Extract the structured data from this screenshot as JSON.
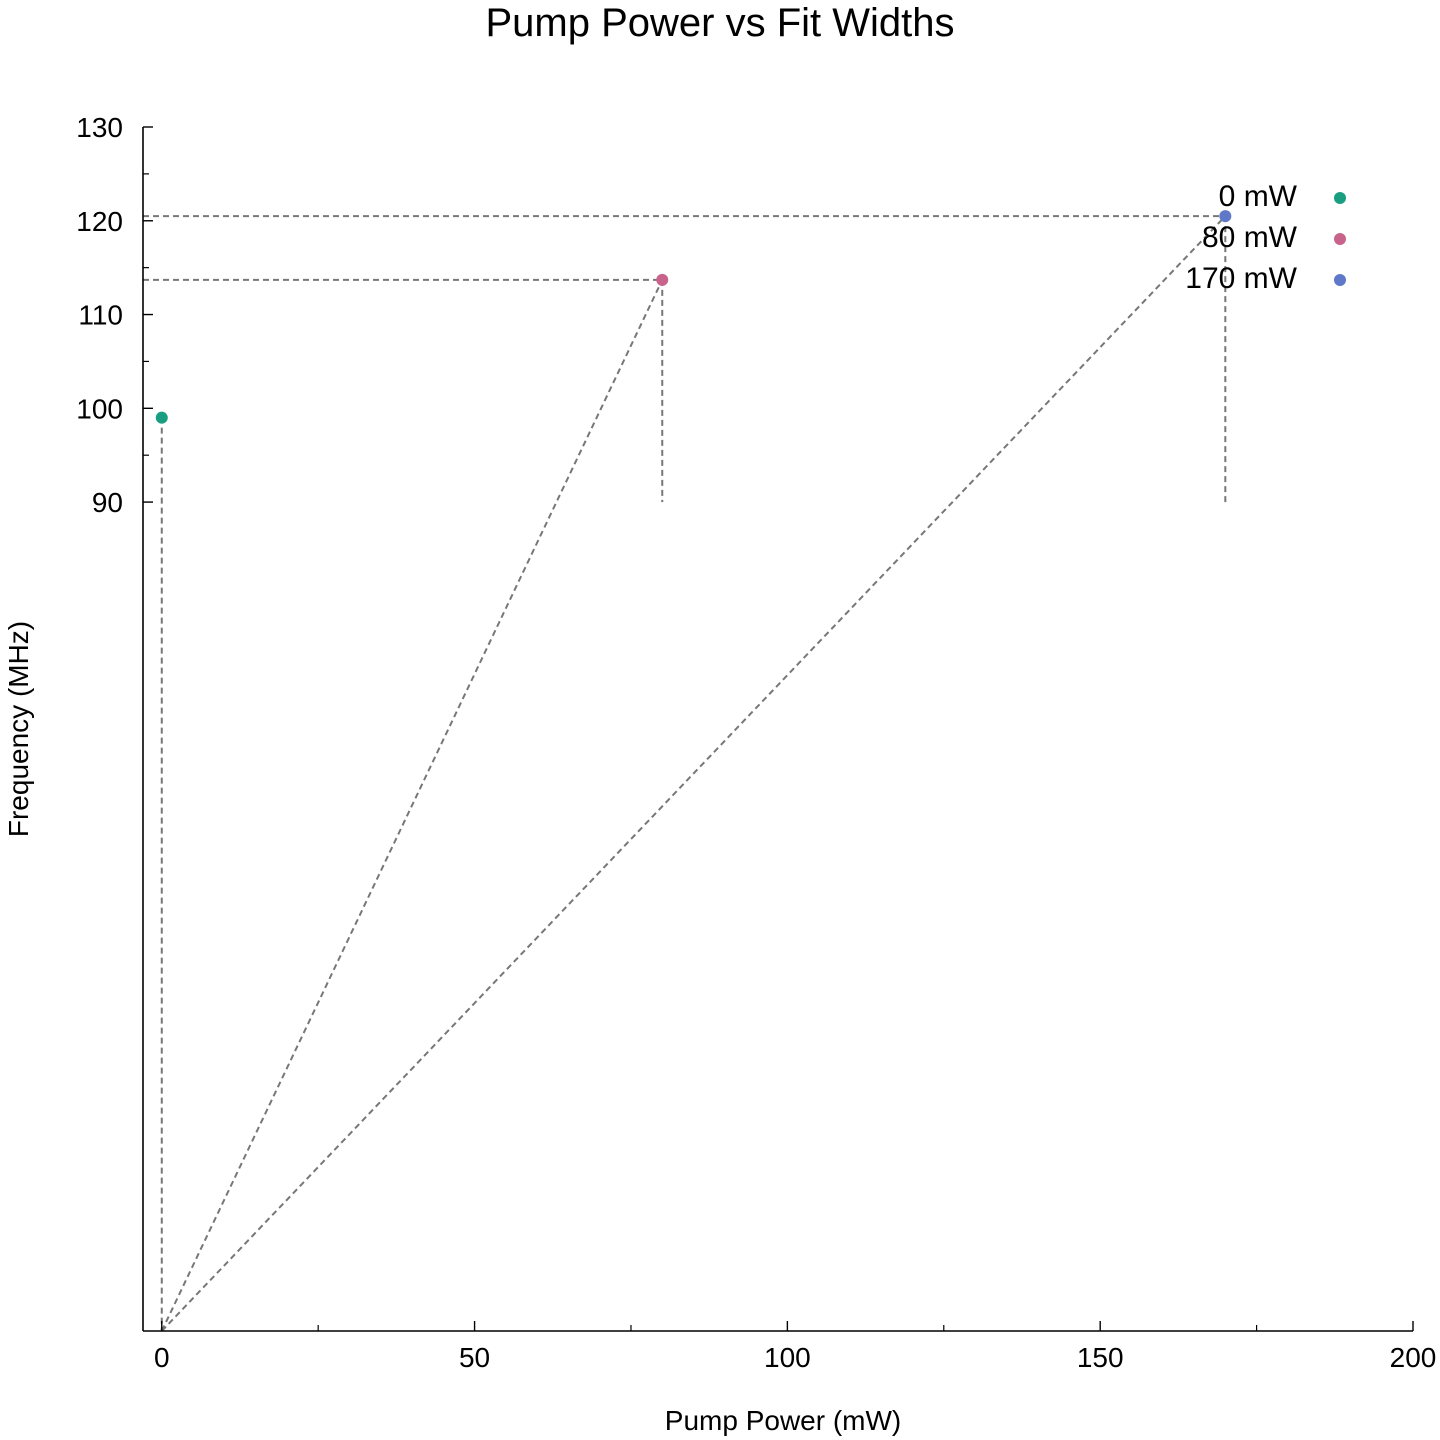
{
  "chart_data": {
    "type": "scatter",
    "title": "Pump Power vs Fit Widths",
    "xlabel": "Pump Power (mW)",
    "ylabel": "Frequency (MHz)",
    "xlim": [
      -3,
      200
    ],
    "ylim": [
      1.6,
      130
    ],
    "x_ticks": [
      0,
      50,
      100,
      150,
      200
    ],
    "x_tick_labels": [
      "0",
      "50",
      "100",
      "150",
      "200"
    ],
    "x_minor_ticks": [
      25,
      75,
      125,
      175
    ],
    "y_ticks": [
      90,
      100,
      110,
      120,
      130
    ],
    "y_tick_labels": [
      "90",
      "100",
      "110",
      "120",
      "130"
    ],
    "y_minor_ticks": [
      95,
      105,
      115,
      125
    ],
    "y_guide_bottom": 90,
    "grid": false,
    "legend_position": "top-right",
    "series": [
      {
        "name": "0 mW",
        "color": "#1a9e82",
        "x": 0,
        "y": 99
      },
      {
        "name": "80 mW",
        "color": "#c8648c",
        "x": 80,
        "y": 113.7
      },
      {
        "name": "170 mW",
        "color": "#5f78c8",
        "x": 170,
        "y": 120.5
      }
    ],
    "guide_color": "#777777"
  }
}
